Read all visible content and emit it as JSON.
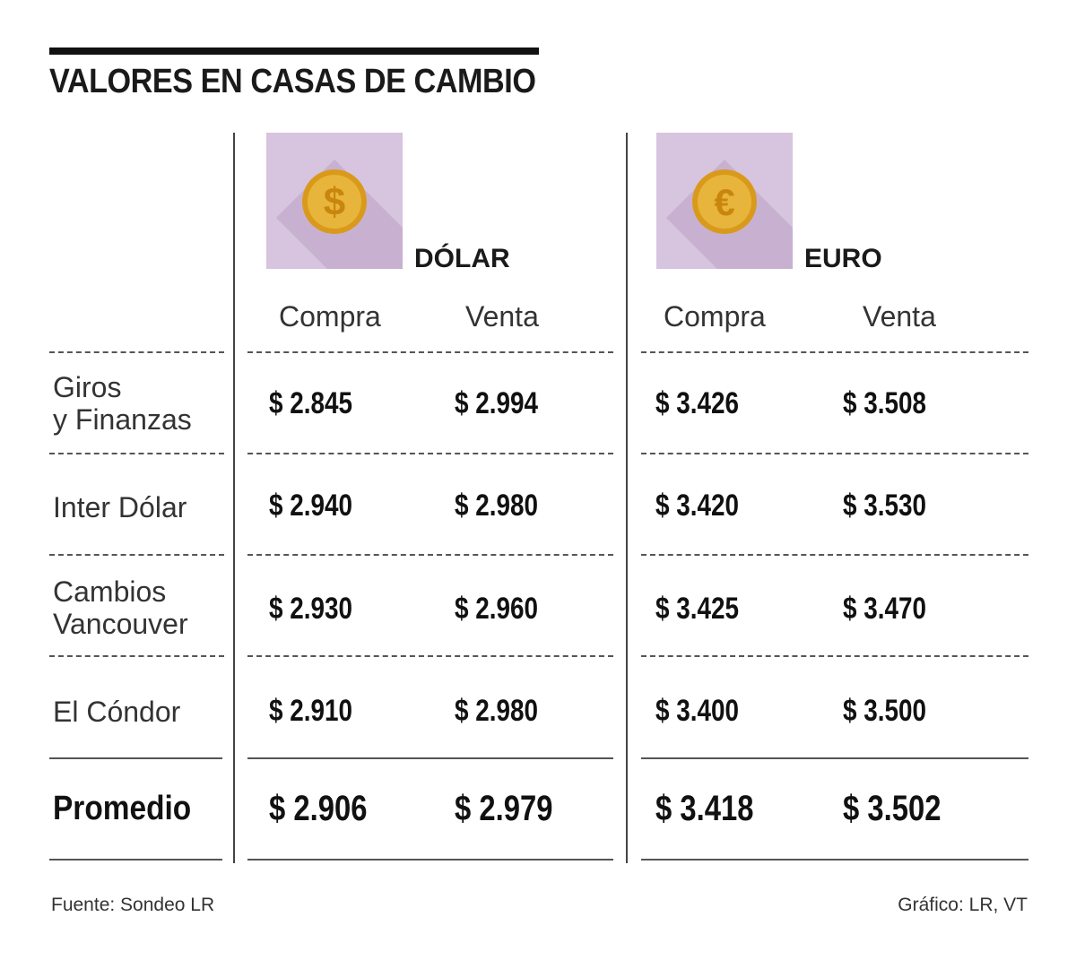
{
  "title": "VALORES EN CASAS DE CAMBIO",
  "currencies": [
    {
      "label": "DÓLAR",
      "icon": "dollar-coin-icon"
    },
    {
      "label": "EURO",
      "icon": "euro-coin-icon"
    }
  ],
  "subheaders": {
    "buy": "Compra",
    "sell": "Venta"
  },
  "rows": [
    {
      "name_line1": "Giros",
      "name_line2": "y Finanzas",
      "usd_buy": "$ 2.845",
      "usd_sell": "$ 2.994",
      "eur_buy": "$ 3.426",
      "eur_sell": "$ 3.508"
    },
    {
      "name_line1": "Inter Dólar",
      "name_line2": "",
      "usd_buy": "$ 2.940",
      "usd_sell": "$ 2.980",
      "eur_buy": "$ 3.420",
      "eur_sell": "$ 3.530"
    },
    {
      "name_line1": "Cambios",
      "name_line2": "Vancouver",
      "usd_buy": "$ 2.930",
      "usd_sell": "$ 2.960",
      "eur_buy": "$ 3.425",
      "eur_sell": "$ 3.470"
    },
    {
      "name_line1": "El Cóndor",
      "name_line2": "",
      "usd_buy": "$ 2.910",
      "usd_sell": "$ 2.980",
      "eur_buy": "$ 3.400",
      "eur_sell": "$ 3.500"
    }
  ],
  "average": {
    "name": "Promedio",
    "usd_buy": "$ 2.906",
    "usd_sell": "$ 2.979",
    "eur_buy": "$ 3.418",
    "eur_sell": "$ 3.502"
  },
  "footer": {
    "source": "Fuente: Sondeo LR",
    "credit": "Gráfico: LR, VT"
  },
  "colors": {
    "icon_bg": "#d7c4de",
    "coin": "#e8b53c",
    "coin_dark": "#d99a1c"
  },
  "chart_data": {
    "type": "table",
    "title": "VALORES EN CASAS DE CAMBIO",
    "columns": [
      "DÓLAR Compra",
      "DÓLAR Venta",
      "EURO Compra",
      "EURO Venta"
    ],
    "rows": [
      {
        "name": "Giros y Finanzas",
        "values": [
          2845,
          2994,
          3426,
          3508
        ]
      },
      {
        "name": "Inter Dólar",
        "values": [
          2940,
          2980,
          3420,
          3530
        ]
      },
      {
        "name": "Cambios Vancouver",
        "values": [
          2930,
          2960,
          3425,
          3470
        ]
      },
      {
        "name": "El Cóndor",
        "values": [
          2910,
          2980,
          3400,
          3500
        ]
      },
      {
        "name": "Promedio",
        "values": [
          2906,
          2979,
          3418,
          3502
        ]
      }
    ]
  }
}
